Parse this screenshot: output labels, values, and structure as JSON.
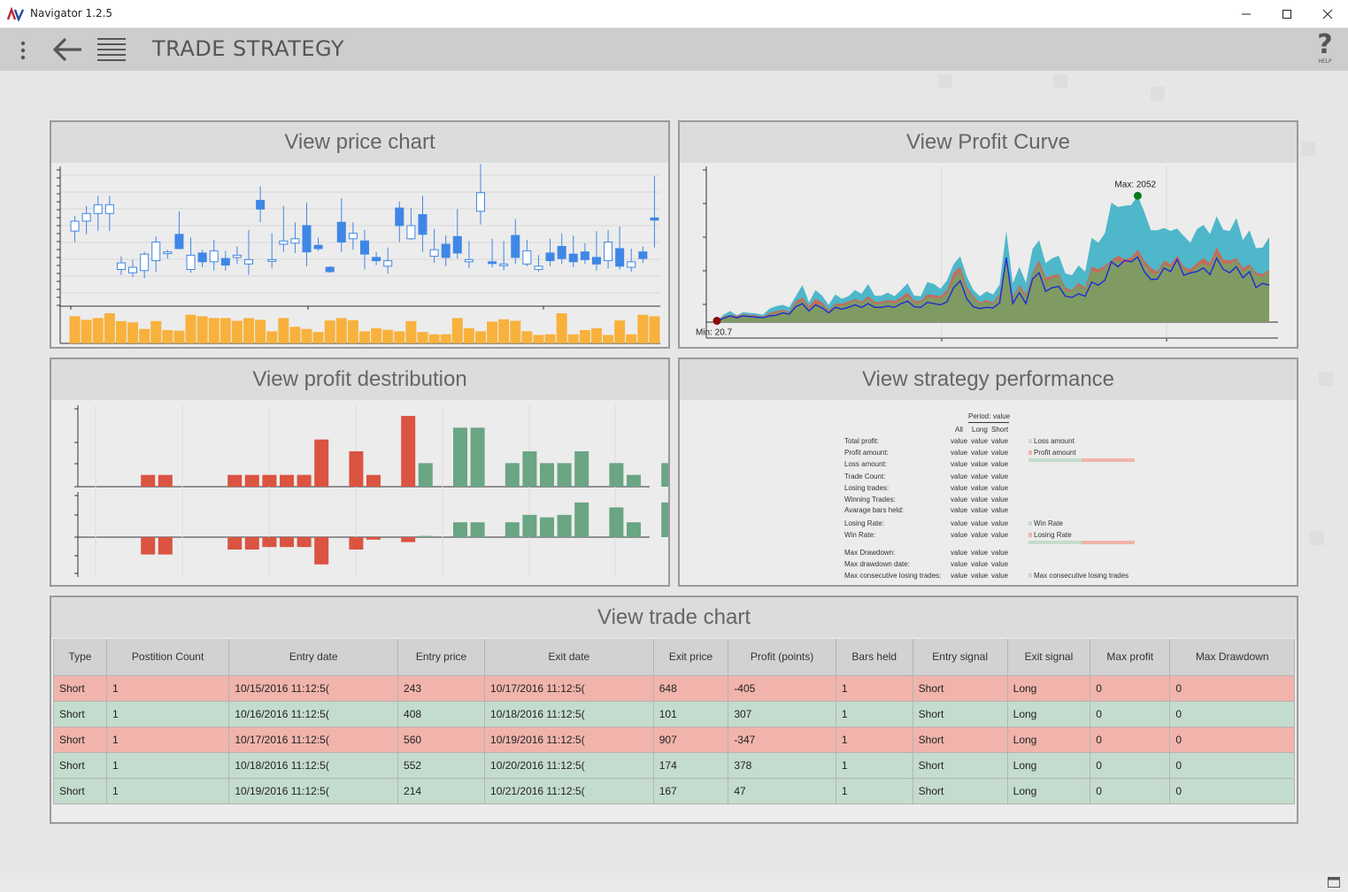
{
  "window": {
    "title": "Navigator 1.2.5"
  },
  "header": {
    "title": "TRADE STRATEGY",
    "help_label": "HELP",
    "help_glyph": "?"
  },
  "panels": {
    "price_chart": "View price chart",
    "profit_curve": "View Profit Curve",
    "profit_distribution": "View profit destribution",
    "strategy_performance": "View strategy performance",
    "trade_chart": "View trade chart"
  },
  "price_chart": {
    "candles": [
      [
        0.62,
        0.71,
        0.52,
        0.76
      ],
      [
        0.71,
        0.78,
        0.59,
        0.85
      ],
      [
        0.78,
        0.86,
        0.62,
        0.94
      ],
      [
        0.78,
        0.86,
        0.62,
        0.94
      ],
      [
        0.27,
        0.33,
        0.22,
        0.39
      ],
      [
        0.24,
        0.29,
        0.2,
        0.36
      ],
      [
        0.26,
        0.41,
        0.19,
        0.43
      ],
      [
        0.35,
        0.52,
        0.25,
        0.57
      ],
      [
        0.42,
        0.43,
        0.37,
        0.45
      ],
      [
        0.59,
        0.46,
        0.46,
        0.8
      ],
      [
        0.27,
        0.4,
        0.24,
        0.56
      ],
      [
        0.42,
        0.34,
        0.29,
        0.45
      ],
      [
        0.34,
        0.44,
        0.26,
        0.54
      ],
      [
        0.37,
        0.31,
        0.26,
        0.44
      ],
      [
        0.38,
        0.4,
        0.32,
        0.48
      ],
      [
        0.32,
        0.36,
        0.22,
        0.63
      ],
      [
        0.9,
        0.82,
        0.7,
        1.03
      ],
      [
        0.35,
        0.36,
        0.28,
        0.6
      ],
      [
        0.5,
        0.53,
        0.43,
        0.85
      ],
      [
        0.51,
        0.55,
        0.42,
        0.7
      ],
      [
        0.67,
        0.43,
        0.3,
        0.88
      ],
      [
        0.49,
        0.46,
        0.44,
        0.56
      ],
      [
        0.29,
        0.25,
        0.24,
        0.3
      ],
      [
        0.7,
        0.52,
        0.43,
        0.92
      ],
      [
        0.55,
        0.6,
        0.45,
        0.7
      ],
      [
        0.53,
        0.41,
        0.27,
        0.63
      ],
      [
        0.38,
        0.35,
        0.31,
        0.43
      ],
      [
        0.3,
        0.35,
        0.23,
        0.47
      ],
      [
        0.83,
        0.67,
        0.52,
        0.89
      ],
      [
        0.55,
        0.67,
        0.54,
        0.83
      ],
      [
        0.77,
        0.59,
        0.43,
        0.94
      ],
      [
        0.39,
        0.45,
        0.33,
        0.64
      ],
      [
        0.5,
        0.38,
        0.3,
        0.58
      ],
      [
        0.57,
        0.42,
        0.37,
        0.82
      ],
      [
        0.34,
        0.36,
        0.28,
        0.53
      ],
      [
        0.8,
        0.97,
        0.68,
        1.23
      ],
      [
        0.34,
        0.33,
        0.29,
        0.55
      ],
      [
        0.31,
        0.32,
        0.26,
        0.53
      ],
      [
        0.58,
        0.38,
        0.32,
        0.73
      ],
      [
        0.32,
        0.44,
        0.3,
        0.54
      ],
      [
        0.27,
        0.3,
        0.25,
        0.4
      ],
      [
        0.42,
        0.35,
        0.3,
        0.55
      ],
      [
        0.48,
        0.37,
        0.32,
        0.6
      ],
      [
        0.41,
        0.34,
        0.29,
        0.58
      ],
      [
        0.43,
        0.36,
        0.32,
        0.51
      ],
      [
        0.38,
        0.32,
        0.26,
        0.62
      ],
      [
        0.35,
        0.52,
        0.28,
        0.63
      ],
      [
        0.46,
        0.3,
        0.27,
        0.66
      ],
      [
        0.29,
        0.34,
        0.25,
        0.46
      ],
      [
        0.43,
        0.37,
        0.33,
        0.48
      ],
      [
        0.74,
        0.72,
        0.47,
        1.12
      ]
    ],
    "volume": [
      0.9,
      0.78,
      0.84,
      1.0,
      0.74,
      0.7,
      0.48,
      0.74,
      0.44,
      0.42,
      0.95,
      0.9,
      0.84,
      0.84,
      0.75,
      0.84,
      0.78,
      0.4,
      0.84,
      0.55,
      0.48,
      0.38,
      0.76,
      0.84,
      0.77,
      0.4,
      0.5,
      0.45,
      0.4,
      0.74,
      0.38,
      0.3,
      0.3,
      0.84,
      0.5,
      0.4,
      0.72,
      0.8,
      0.75,
      0.4,
      0.28,
      0.3,
      1.0,
      0.3,
      0.44,
      0.5,
      0.28,
      0.76,
      0.3,
      0.95,
      0.9
    ]
  },
  "profit_curve": {
    "max_label": "Max: 2052",
    "min_label": "Min: 20.7",
    "series_all": [
      20.7,
      120,
      180,
      110,
      160,
      150,
      140,
      120,
      220,
      260,
      280,
      240,
      420,
      600,
      320,
      520,
      430,
      280,
      450,
      380,
      420,
      520,
      460,
      620,
      430,
      430,
      480,
      420,
      520,
      630,
      430,
      420,
      650,
      620,
      540,
      680,
      940,
      1070,
      740,
      520,
      420,
      500,
      450,
      610,
      1480,
      630,
      900,
      640,
      1190,
      1330,
      960,
      1040,
      1080,
      790,
      760,
      920,
      820,
      1370,
      1290,
      1440,
      1940,
      1870,
      1890,
      1900,
      2052,
      1790,
      1490,
      1490,
      1530,
      1480,
      1520,
      1400,
      1290,
      1510,
      1580,
      1430,
      1720,
      1500,
      1480,
      1690,
      1330,
      1490,
      1200,
      1210,
      1380
    ],
    "series_long": [
      20.7,
      90,
      120,
      100,
      130,
      120,
      110,
      90,
      150,
      180,
      200,
      170,
      340,
      400,
      260,
      380,
      320,
      200,
      300,
      300,
      330,
      380,
      330,
      420,
      330,
      330,
      360,
      340,
      400,
      480,
      350,
      340,
      450,
      440,
      420,
      520,
      800,
      900,
      580,
      420,
      320,
      360,
      320,
      460,
      1060,
      420,
      600,
      460,
      800,
      1000,
      720,
      760,
      780,
      560,
      520,
      640,
      560,
      900,
      860,
      920,
      1000,
      1080,
      1020,
      1050,
      1180,
      1000,
      880,
      820,
      1000,
      940,
      1080,
      900,
      860,
      960,
      1040,
      960,
      1220,
      1020,
      1000,
      1040,
      880,
      940,
      800,
      780,
      850
    ],
    "series_short": [
      20.7,
      80,
      110,
      80,
      120,
      110,
      90,
      80,
      130,
      150,
      180,
      160,
      300,
      350,
      220,
      300,
      280,
      180,
      280,
      260,
      300,
      360,
      300,
      380,
      300,
      300,
      330,
      300,
      360,
      420,
      310,
      310,
      400,
      400,
      380,
      460,
      700,
      820,
      520,
      380,
      300,
      330,
      300,
      420,
      960,
      400,
      560,
      420,
      780,
      920,
      660,
      720,
      740,
      520,
      500,
      600,
      520,
      840,
      800,
      880,
      980,
      1000,
      960,
      1000,
      1100,
      940,
      800,
      780,
      940,
      900,
      1000,
      860,
      800,
      900,
      960,
      900,
      1100,
      960,
      940,
      1000,
      820,
      900,
      760,
      740,
      820
    ],
    "series_line": [
      20.7,
      60,
      100,
      70,
      100,
      90,
      80,
      70,
      100,
      110,
      150,
      130,
      250,
      300,
      180,
      280,
      230,
      150,
      240,
      210,
      240,
      280,
      240,
      300,
      240,
      240,
      260,
      240,
      300,
      340,
      250,
      240,
      320,
      300,
      280,
      330,
      560,
      670,
      380,
      250,
      220,
      240,
      230,
      310,
      1050,
      300,
      480,
      300,
      700,
      800,
      500,
      560,
      580,
      420,
      400,
      460,
      420,
      650,
      600,
      680,
      980,
      900,
      1000,
      980,
      1060,
      820,
      690,
      700,
      880,
      820,
      1020,
      760,
      800,
      820,
      880,
      770,
      1040,
      860,
      800,
      900,
      720,
      820,
      560,
      630,
      600
    ]
  },
  "profit_distribution": {
    "bins": [
      -3,
      -2,
      -1,
      0,
      1,
      2,
      3,
      4,
      5,
      6,
      7,
      8,
      9,
      10,
      11,
      12,
      13,
      14,
      15,
      16,
      17,
      18,
      19,
      20,
      21,
      22,
      23,
      24,
      25,
      26,
      27,
      28,
      29,
      30,
      31
    ],
    "top_values": [
      0,
      0,
      1,
      1,
      0,
      0,
      0,
      1,
      1,
      1,
      1,
      1,
      4,
      0,
      3,
      1,
      0,
      6,
      2,
      0,
      5,
      5,
      0,
      2,
      3,
      2,
      2,
      3,
      0,
      2,
      1,
      0,
      2,
      0
    ],
    "top_colors": [
      "",
      "",
      "r",
      "r",
      "",
      "",
      "",
      "r",
      "r",
      "r",
      "r",
      "r",
      "r",
      "",
      "r",
      "r",
      "",
      "r",
      "g",
      "",
      "g",
      "g",
      "",
      "g",
      "g",
      "g",
      "g",
      "g",
      "",
      "g",
      "g",
      "",
      "g",
      ""
    ],
    "bottom_values": [
      0,
      0,
      -0.7,
      -0.7,
      0,
      0,
      0,
      -0.5,
      -0.5,
      -0.4,
      -0.4,
      -0.4,
      -1.1,
      0,
      -0.5,
      -0.1,
      0,
      -0.2,
      0.05,
      0,
      0.6,
      0.6,
      0,
      0.6,
      0.9,
      0.8,
      0.9,
      1.4,
      0,
      1.2,
      0.6,
      0,
      1.4,
      0
    ],
    "bottom_colors": [
      "",
      "",
      "r",
      "r",
      "",
      "",
      "",
      "r",
      "r",
      "r",
      "r",
      "r",
      "r",
      "",
      "r",
      "r",
      "",
      "r",
      "g",
      "",
      "g",
      "g",
      "",
      "g",
      "g",
      "g",
      "g",
      "g",
      "",
      "g",
      "g",
      "",
      "g",
      ""
    ]
  },
  "performance": {
    "period_label": "Period:",
    "period_value": "value",
    "col_all": "All",
    "col_long": "Long",
    "col_short": "Short",
    "rows": [
      {
        "label": "Total profit:",
        "v": [
          "value",
          "value",
          "value"
        ]
      },
      {
        "label": "Profit amount:",
        "v": [
          "value",
          "value",
          "value"
        ]
      },
      {
        "label": "Loss amount:",
        "v": [
          "value",
          "value",
          "value"
        ]
      },
      {
        "label": "Trade Count:",
        "v": [
          "value",
          "value",
          "value"
        ]
      },
      {
        "label": "Losing trades:",
        "v": [
          "value",
          "value",
          "value"
        ]
      },
      {
        "label": "Winning Trades:",
        "v": [
          "value",
          "value",
          "value"
        ]
      },
      {
        "label": "Avarage bars held:",
        "v": [
          "value",
          "value",
          "value"
        ]
      },
      {
        "label": "Losing Rate:",
        "v": [
          "value",
          "value",
          "value"
        ]
      },
      {
        "label": "Win Rate:",
        "v": [
          "value",
          "value",
          "value"
        ]
      },
      {
        "label": "Max Drawdown:",
        "v": [
          "value",
          "value",
          "value"
        ]
      },
      {
        "label": "Max drawdown date:",
        "v": [
          "value",
          "value",
          "value"
        ]
      },
      {
        "label": "Max consecutive losing trades:",
        "v": [
          "value",
          "value",
          "value"
        ]
      }
    ],
    "legend": [
      "Loss amount",
      "Profit amount",
      "Win Rate",
      "Losing Rate",
      "Max consecutive losing trades"
    ]
  },
  "table": {
    "columns": [
      "Type",
      "Postition Count",
      "Entry date",
      "Entry price",
      "Exit date",
      "Exit price",
      "Profit (points)",
      "Bars held",
      "Entry signal",
      "Exit signal",
      "Max profit",
      "Max Drawdown"
    ],
    "rows": [
      {
        "status": "loss",
        "cells": [
          "Short",
          "1",
          "10/15/2016 11:12:5(",
          "243",
          "10/17/2016 11:12:5(",
          "648",
          "-405",
          "1",
          "Short",
          "Long",
          "0",
          "0"
        ]
      },
      {
        "status": "win",
        "cells": [
          "Short",
          "1",
          "10/16/2016 11:12:5(",
          "408",
          "10/18/2016 11:12:5(",
          "101",
          "307",
          "1",
          "Short",
          "Long",
          "0",
          "0"
        ]
      },
      {
        "status": "loss",
        "cells": [
          "Short",
          "1",
          "10/17/2016 11:12:5(",
          "560",
          "10/19/2016 11:12:5(",
          "907",
          "-347",
          "1",
          "Short",
          "Long",
          "0",
          "0"
        ]
      },
      {
        "status": "win",
        "cells": [
          "Short",
          "1",
          "10/18/2016 11:12:5(",
          "552",
          "10/20/2016 11:12:5(",
          "174",
          "378",
          "1",
          "Short",
          "Long",
          "0",
          "0"
        ]
      },
      {
        "status": "win",
        "cells": [
          "Short",
          "1",
          "10/19/2016 11:12:5(",
          "214",
          "10/21/2016 11:12:5(",
          "167",
          "47",
          "1",
          "Short",
          "Long",
          "0",
          "0"
        ]
      }
    ]
  },
  "colors": {
    "candle_up": "#ffffff",
    "candle_down": "#3f87e6",
    "volume": "#f8b13c",
    "area_all": "#46b4c8",
    "area_long": "#d36450",
    "area_short": "#78a064",
    "line": "#1e2ad6",
    "loss_bar": "#db5341",
    "win_bar": "#6aa584",
    "loss_row": "#f0b4ac",
    "win_row": "#c4dccd"
  },
  "icons": {
    "app": "navigator-logo-icon",
    "minimize": "minimize-icon",
    "maximize": "maximize-icon",
    "close": "close-icon",
    "dots": "more-vertical-icon",
    "back": "arrow-left-icon",
    "menu": "list-menu-icon",
    "help": "help-icon",
    "statusbar": "window-icon"
  }
}
